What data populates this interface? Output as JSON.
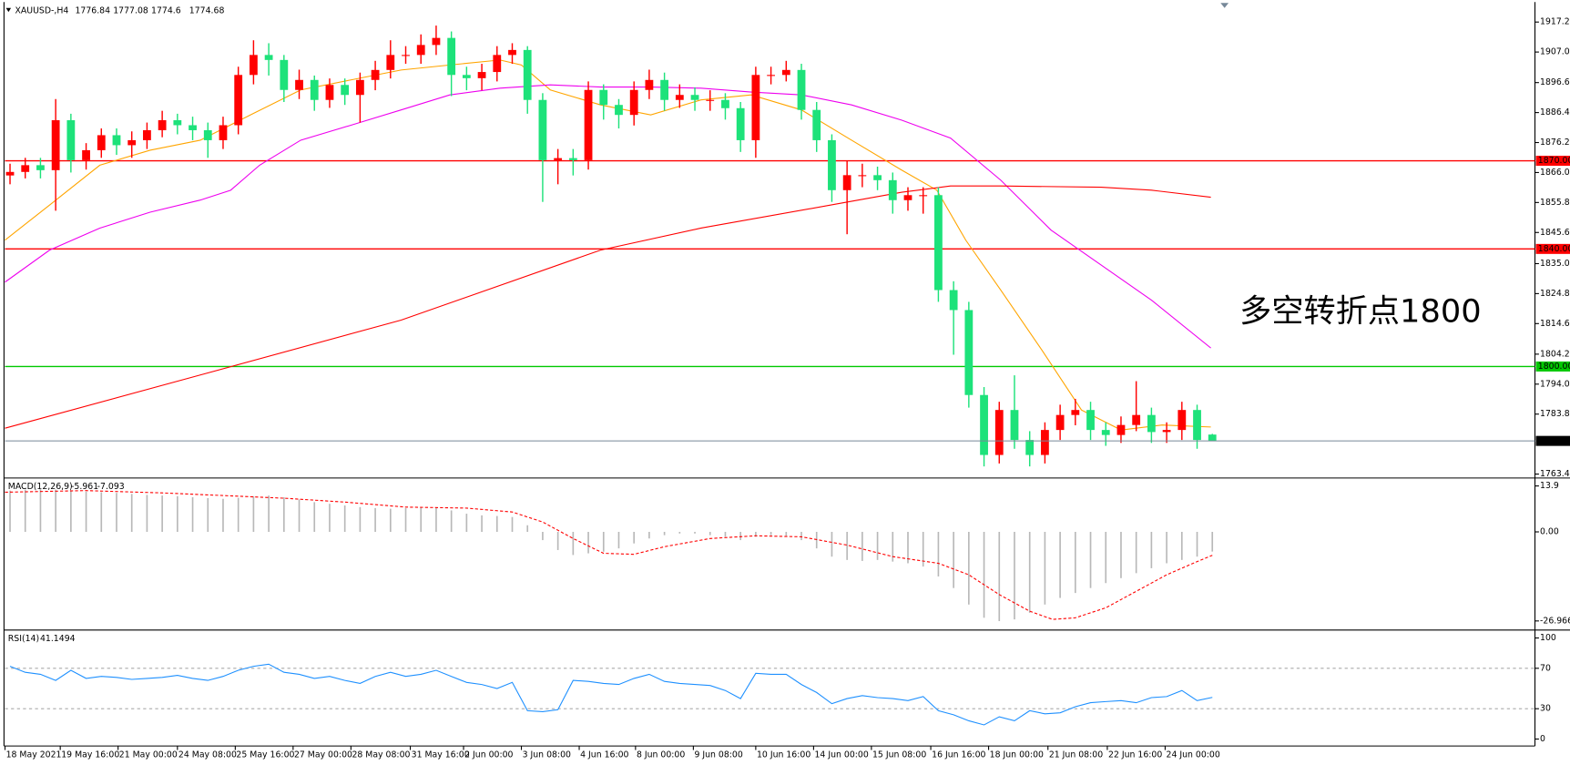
{
  "chart_data": [
    {
      "type": "candlestick",
      "title": "XAUUSD-,H4",
      "open": [
        1865,
        1866.2,
        1868.5,
        1866.8,
        1883.8,
        1870.2,
        1873.6,
        1878.7,
        1875.3,
        1877.0,
        1880.4,
        1883.8,
        1882.1,
        1880.4,
        1877.0,
        1882.1,
        1899.2,
        1906.0,
        1904.3,
        1894.1,
        1897.5,
        1890.7,
        1895.8,
        1892.4,
        1897.5,
        1900.9,
        1906.0,
        1906.0,
        1909.4,
        1911.8,
        1899.2,
        1898.1,
        1900.2,
        1906.0,
        1907.7,
        1890.7,
        1870.2,
        1870.9,
        1870.2,
        1894.1,
        1889.0,
        1885.6,
        1894.1,
        1897.5,
        1890.7,
        1892.4,
        1890.7,
        1890.7,
        1887.9,
        1877.0,
        1899.2,
        1899.2,
        1900.9,
        1887.3,
        1877.0,
        1860.0,
        1865.1,
        1865.1,
        1863.4,
        1856.6,
        1858.3,
        1858.3,
        1826.0,
        1819.2,
        1790.3,
        1769.9,
        1785.2,
        1775.0,
        1769.9,
        1778.4,
        1783.5,
        1785.2,
        1778.4,
        1776.7,
        1780.1,
        1783.5,
        1777.7,
        1778.4,
        1785.2,
        1776.84
      ],
      "high": [
        1869,
        1871,
        1871,
        1891,
        1886,
        1876,
        1881,
        1881,
        1880,
        1883,
        1887,
        1886,
        1885,
        1883,
        1885,
        1902,
        1911,
        1910,
        1906,
        1901,
        1899,
        1898,
        1898,
        1900,
        1904,
        1911,
        1909,
        1913,
        1916,
        1914,
        1902,
        1903,
        1909,
        1910,
        1909,
        1893,
        1874,
        1874,
        1897,
        1896,
        1891,
        1897,
        1901,
        1900,
        1896,
        1895,
        1894,
        1893,
        1890,
        1902,
        1902,
        1904,
        1903,
        1890,
        1879,
        1870,
        1869,
        1868,
        1866,
        1861,
        1861,
        1861,
        1829,
        1822,
        1793,
        1788,
        1797,
        1778,
        1781,
        1787,
        1789,
        1788,
        1781,
        1783,
        1795,
        1786,
        1781,
        1788,
        1787,
        1777.08
      ],
      "low": [
        1862,
        1864,
        1864,
        1853,
        1866,
        1867,
        1871,
        1872,
        1871,
        1874,
        1878,
        1879,
        1877,
        1871,
        1874,
        1879,
        1896,
        1899,
        1890,
        1891,
        1887,
        1888,
        1889,
        1883,
        1894,
        1898,
        1903,
        1903,
        1906,
        1892,
        1894,
        1894,
        1897,
        1903,
        1886,
        1856,
        1862,
        1865,
        1867,
        1884,
        1881,
        1882,
        1891,
        1887,
        1888,
        1887,
        1887,
        1884,
        1873,
        1871,
        1896,
        1897,
        1884,
        1873,
        1856,
        1845,
        1861,
        1860,
        1852,
        1853,
        1852,
        1822,
        1804,
        1786,
        1766,
        1767,
        1772,
        1766,
        1767,
        1775,
        1780,
        1775,
        1773,
        1774,
        1778,
        1774,
        1774,
        1775,
        1772,
        1774.6
      ],
      "close": [
        1866.2,
        1868.5,
        1866.8,
        1883.8,
        1870.2,
        1873.6,
        1878.7,
        1875.3,
        1877.0,
        1880.4,
        1883.8,
        1882.1,
        1880.4,
        1877.0,
        1882.1,
        1899.2,
        1906.0,
        1904.3,
        1894.1,
        1897.5,
        1890.7,
        1895.8,
        1892.4,
        1897.5,
        1900.9,
        1906.0,
        1906.0,
        1909.4,
        1911.8,
        1899.2,
        1898.1,
        1900.2,
        1906.0,
        1907.7,
        1890.7,
        1870.2,
        1870.9,
        1870.2,
        1894.1,
        1889.0,
        1885.6,
        1894.1,
        1897.5,
        1890.7,
        1892.4,
        1890.7,
        1890.7,
        1887.9,
        1877.0,
        1899.2,
        1899.2,
        1900.9,
        1887.3,
        1877.0,
        1860.0,
        1865.1,
        1865.1,
        1863.4,
        1856.6,
        1858.3,
        1858.3,
        1826.0,
        1819.2,
        1790.3,
        1769.9,
        1785.2,
        1775.0,
        1769.9,
        1778.4,
        1783.5,
        1785.2,
        1778.4,
        1776.7,
        1780.1,
        1783.5,
        1777.7,
        1778.4,
        1785.2,
        1775.0,
        1774.68
      ],
      "up_color": "#ff0000",
      "down_color": "#1de27a",
      "xlim": [
        -0.33,
        100.2
      ],
      "ylim": [
        1762.4,
        1923.0
      ],
      "yticks": [
        {
          "value": 1917.2,
          "label": "1917.20"
        },
        {
          "value": 1907,
          "label": "1907.00"
        },
        {
          "value": 1896.6,
          "label": "1896.60"
        },
        {
          "value": 1886.4,
          "label": "1886.40"
        },
        {
          "value": 1876.2,
          "label": "1876.20"
        },
        {
          "value": 1866,
          "label": "1866.00"
        },
        {
          "value": 1855.8,
          "label": "1855.80"
        },
        {
          "value": 1845.6,
          "label": "1845.60"
        },
        {
          "value": 1835,
          "label": "1835.00"
        },
        {
          "value": 1824.8,
          "label": "1824.80"
        },
        {
          "value": 1814.6,
          "label": "1814.60"
        },
        {
          "value": 1804.2,
          "label": "1804.20"
        },
        {
          "value": 1794,
          "label": "1794.00"
        },
        {
          "value": 1783.8,
          "label": "1783.80"
        },
        {
          "value": 1763.4,
          "label": "1763.40"
        }
      ],
      "lines": [
        {
          "color": "#ffa500",
          "x": [
            -0.33,
            2.6,
            5.9,
            9.2,
            12.5,
            15.8,
            19.1,
            22.4,
            25.7,
            28.9,
            32.2,
            33.6,
            35.5,
            38.8,
            42.1,
            45.4,
            48.7,
            52.0,
            55.3,
            58.6,
            60.9,
            62.8,
            65.1,
            67.8,
            70.4,
            73.0,
            75.7,
            78.9
          ],
          "values": [
            1843.0,
            1854.9,
            1868.5,
            1873.6,
            1877.0,
            1885.6,
            1894.1,
            1897.5,
            1900.9,
            1902.6,
            1904.3,
            1902.6,
            1894.1,
            1889.0,
            1885.6,
            1890.7,
            1892.4,
            1887.3,
            1877.0,
            1866.8,
            1860.0,
            1843.0,
            1826.0,
            1805.6,
            1785.2,
            1778.4,
            1780.1,
            1779.4
          ]
        },
        {
          "color": "#ee00ee",
          "x": [
            -0.33,
            2.6,
            5.9,
            9.2,
            12.5,
            14.5,
            16.4,
            19.1,
            22.4,
            25.7,
            28.9,
            32.2,
            35.5,
            38.8,
            42.1,
            45.4,
            48.7,
            52.0,
            55.3,
            58.6,
            61.8,
            65.1,
            68.4,
            71.7,
            75.0,
            78.9
          ],
          "values": [
            1828.7,
            1839.6,
            1847.1,
            1852.5,
            1856.6,
            1860.0,
            1868.5,
            1877.0,
            1882.1,
            1887.3,
            1892.4,
            1894.7,
            1895.8,
            1895.1,
            1895.1,
            1894.7,
            1893.4,
            1892.4,
            1889.0,
            1883.8,
            1877.7,
            1863.4,
            1846.4,
            1834.5,
            1822.6,
            1806.3
          ]
        },
        {
          "color": "#ff0000",
          "x": [
            -0.33,
            12.5,
            25.7,
            38.8,
            45.4,
            53.9,
            58.6,
            61.8,
            65.1,
            71.7,
            75.0,
            78.9
          ],
          "values": [
            1779.0,
            1797.1,
            1815.8,
            1839.6,
            1847.1,
            1854.9,
            1859.3,
            1861.4,
            1861.4,
            1861.0,
            1860.0,
            1857.6
          ]
        }
      ],
      "levels": [
        {
          "value": 1870,
          "label": "1870.00",
          "color": "#ff0000"
        },
        {
          "value": 1840,
          "label": "1840.00",
          "color": "#ff0000"
        },
        {
          "value": 1800,
          "label": "1800.00",
          "color": "#00c800"
        }
      ],
      "last_color": "#778899",
      "annotation": {
        "text": "多空转折点1800",
        "color": "#ff0000"
      }
    },
    {
      "type": "macd",
      "title": "MACD(12,26,9)",
      "values": [
        12.5,
        12.8,
        13.0,
        12.8,
        12.5,
        12.2,
        12.0,
        11.8,
        11.5,
        11.2,
        11.0,
        10.8,
        10.5,
        10.2,
        10.0,
        10.3,
        10.8,
        11.0,
        10.5,
        9.8,
        9.0,
        8.5,
        8.0,
        7.5,
        7.2,
        7.0,
        7.2,
        7.5,
        7.3,
        6.5,
        5.5,
        5.0,
        4.8,
        4.5,
        2.0,
        -2.5,
        -5.5,
        -7.0,
        -6.5,
        -6.0,
        -5.0,
        -3.5,
        -2.0,
        -1.0,
        -0.5,
        -0.5,
        -1.0,
        -1.5,
        -2.5,
        -1.5,
        -1.0,
        -1.2,
        -2.5,
        -5.0,
        -7.5,
        -8.5,
        -8.8,
        -8.5,
        -9.0,
        -9.5,
        -10.5,
        -13.5,
        -17.0,
        -22.0,
        -26.0,
        -27.0,
        -26.5,
        -24.5,
        -22.0,
        -20.0,
        -18.5,
        -17.0,
        -15.5,
        -14.0,
        -12.5,
        -11.0,
        -9.5,
        -8.5,
        -7.5,
        -5.961
      ],
      "color": "#b8b8b8",
      "signal": {
        "color": "#ff0000",
        "x": [
          -0.33,
          5,
          10,
          15,
          18,
          22,
          26,
          30,
          33,
          35,
          37,
          39,
          41,
          43,
          46,
          49,
          52,
          55,
          58,
          61,
          63,
          65,
          67,
          68.5,
          70,
          72,
          74,
          76,
          78,
          79
        ],
        "values": [
          12.0,
          12.5,
          11.8,
          10.8,
          10.2,
          9.0,
          7.5,
          7.2,
          6.0,
          3.0,
          -2.0,
          -6.5,
          -6.8,
          -4.5,
          -2.0,
          -1.2,
          -1.5,
          -4.0,
          -7.5,
          -9.5,
          -13,
          -19,
          -24,
          -26.5,
          -26,
          -23,
          -18,
          -13,
          -9,
          -7.093
        ]
      },
      "xlim": [
        -0.33,
        100.2
      ],
      "ylim": [
        -29.1,
        15.7
      ],
      "yticks": [
        13.9,
        {
          "value": 0,
          "label": "0.00"
        },
        -26.966
      ]
    },
    {
      "type": "line",
      "title": "RSI(14)",
      "values": [
        72,
        66,
        64,
        58,
        68,
        60,
        62,
        61,
        59,
        60,
        61,
        63,
        60,
        58,
        62,
        68,
        72,
        74,
        66,
        64,
        60,
        62,
        58,
        55,
        62,
        66,
        62,
        64,
        68,
        62,
        56,
        54,
        50,
        56,
        28,
        27,
        29,
        58,
        57,
        55,
        54,
        60,
        64,
        57,
        55,
        54,
        53,
        48,
        40,
        65,
        64,
        64,
        54,
        46,
        35,
        40,
        43,
        41,
        40,
        38,
        42,
        28,
        24,
        18,
        14,
        22,
        18,
        28,
        25,
        26,
        32,
        36,
        37,
        38,
        36,
        41,
        42,
        48,
        38,
        41.1494
      ],
      "color": "#1e90ff",
      "levels": [
        70,
        30
      ],
      "xlim": [
        -0.33,
        100.2
      ],
      "ylim": [
        -5.9,
        105.9
      ],
      "yticks": [
        100,
        70,
        30,
        0
      ],
      "xticks": [
        {
          "value": -0.33,
          "label": "18 May 2021"
        },
        {
          "value": 3.3,
          "label": "19 May 16:00"
        },
        {
          "value": 7.1,
          "label": "21 May 00:00"
        },
        {
          "value": 11.0,
          "label": "24 May 08:00"
        },
        {
          "value": 14.8,
          "label": "25 May 16:00"
        },
        {
          "value": 18.6,
          "label": "27 May 00:00"
        },
        {
          "value": 22.4,
          "label": "28 May 08:00"
        },
        {
          "value": 26.3,
          "label": "31 May 16:00"
        },
        {
          "value": 29.8,
          "label": "2 Jun 00:00"
        },
        {
          "value": 33.6,
          "label": "3 Jun 08:00"
        },
        {
          "value": 37.4,
          "label": "4 Jun 16:00"
        },
        {
          "value": 41.1,
          "label": "8 Jun 00:00"
        },
        {
          "value": 44.9,
          "label": "9 Jun 08:00"
        },
        {
          "value": 49.0,
          "label": "10 Jun 16:00"
        },
        {
          "value": 52.8,
          "label": "14 Jun 00:00"
        },
        {
          "value": 56.6,
          "label": "15 Jun 08:00"
        },
        {
          "value": 60.5,
          "label": "16 Jun 16:00"
        },
        {
          "value": 64.3,
          "label": "18 Jun 00:00"
        },
        {
          "value": 68.2,
          "label": "21 Jun 08:00"
        },
        {
          "value": 72.1,
          "label": "22 Jun 16:00"
        },
        {
          "value": 75.9,
          "label": "24 Jun 00:00"
        }
      ]
    }
  ]
}
